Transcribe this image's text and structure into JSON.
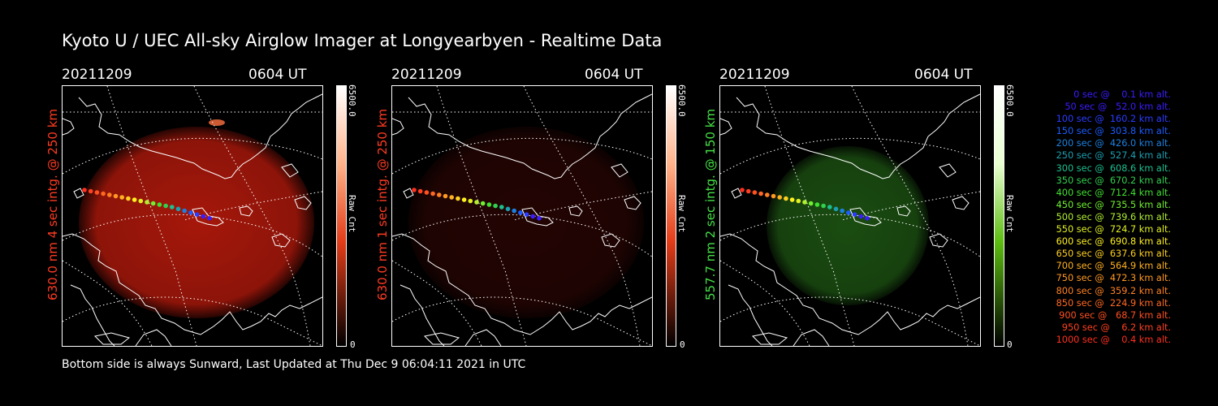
{
  "title": "Kyoto U / UEC All-sky Airglow Imager at Longyearbyen - Realtime Data",
  "footer": "Bottom side is always Sunward, Last Updated at Thu Dec  9 06:04:11 2021 in UTC",
  "panels": [
    {
      "date": "20211209",
      "time": "0604 UT",
      "side_label": "630.0 nm 4 sec intg. @ 250 km",
      "side_color": "#ff3b22",
      "cbar_max": "6500.0",
      "cbar_unit": "Raw Cnt",
      "cbar_min": "0",
      "image_color": "#b81a0c",
      "image_intensity": 0.9,
      "cbar_top": "#ffb38a",
      "cbar_mid": "#e33c18"
    },
    {
      "date": "20211209",
      "time": "0604 UT",
      "side_label": "630.0 nm 1 sec intg. @ 250 km",
      "side_color": "#ff3b22",
      "cbar_max": "6500.0",
      "cbar_unit": "Raw Cnt",
      "cbar_min": "0",
      "image_color": "#3a0805",
      "image_intensity": 0.6,
      "cbar_top": "#ffb38a",
      "cbar_mid": "#e33c18"
    },
    {
      "date": "20211209",
      "time": "0604 UT",
      "side_label": "557.7 nm 2 sec intg. @ 150 km",
      "side_color": "#44e044",
      "cbar_max": "6500.0",
      "cbar_unit": "Raw Cnt",
      "cbar_min": "0",
      "image_color": "#1f5a14",
      "image_intensity": 0.85,
      "cbar_top": "#e8ffd0",
      "cbar_mid": "#5cbd10"
    }
  ],
  "legend": [
    {
      "text": "0 sec @    0.1 km alt.",
      "color": "#3a1cff"
    },
    {
      "text": "50 sec @   52.0 km alt.",
      "color": "#3a1cff"
    },
    {
      "text": "100 sec @  160.2 km alt.",
      "color": "#2a3cff"
    },
    {
      "text": "150 sec @  303.8 km alt.",
      "color": "#1c5cff"
    },
    {
      "text": "200 sec @  426.0 km alt.",
      "color": "#1c80e0"
    },
    {
      "text": "250 sec @  527.4 km alt.",
      "color": "#1c9fb0"
    },
    {
      "text": "300 sec @  608.6 km alt.",
      "color": "#1cc090"
    },
    {
      "text": "350 sec @  670.2 km alt.",
      "color": "#30d050"
    },
    {
      "text": "400 sec @  712.4 km alt.",
      "color": "#40e030"
    },
    {
      "text": "450 sec @  735.5 km alt.",
      "color": "#70f030"
    },
    {
      "text": "500 sec @  739.6 km alt.",
      "color": "#b0f030"
    },
    {
      "text": "550 sec @  724.7 km alt.",
      "color": "#e0f020"
    },
    {
      "text": "600 sec @  690.8 km alt.",
      "color": "#fff020"
    },
    {
      "text": "650 sec @  637.6 km alt.",
      "color": "#ffd020"
    },
    {
      "text": "700 sec @  564.9 km alt.",
      "color": "#ffb020"
    },
    {
      "text": "750 sec @  472.3 km alt.",
      "color": "#ff9820"
    },
    {
      "text": "800 sec @  359.2 km alt.",
      "color": "#ff8020"
    },
    {
      "text": "850 sec @  224.9 km alt.",
      "color": "#ff6820"
    },
    {
      "text": "900 sec @   68.7 km alt.",
      "color": "#ff5020"
    },
    {
      "text": "950 sec @    6.2 km alt.",
      "color": "#ff4020"
    },
    {
      "text": "1000 sec @    0.4 km alt.",
      "color": "#ff3020"
    }
  ]
}
